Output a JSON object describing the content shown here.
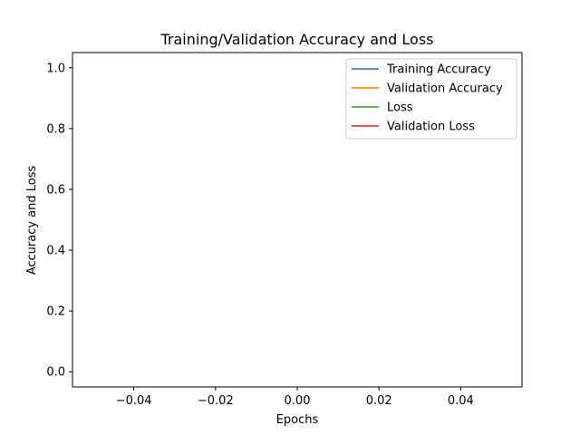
{
  "chart_data": {
    "type": "line",
    "title": "Training/Validation Accuracy and Loss",
    "xlabel": "Epochs",
    "ylabel": "Accuracy and Loss",
    "xlim": [
      -0.055,
      0.055
    ],
    "ylim": [
      -0.05,
      1.05
    ],
    "xticks": [
      -0.04,
      -0.02,
      0.0,
      0.02,
      0.04
    ],
    "xtick_labels": [
      "−0.04",
      "−0.02",
      "0.00",
      "0.02",
      "0.04"
    ],
    "yticks": [
      0.0,
      0.2,
      0.4,
      0.6,
      0.8,
      1.0
    ],
    "ytick_labels": [
      "0.0",
      "0.2",
      "0.4",
      "0.6",
      "0.8",
      "1.0"
    ],
    "grid": false,
    "legend_position": "top-right",
    "series": [
      {
        "name": "Training Accuracy",
        "color": "#1f77b4",
        "x": [],
        "y": []
      },
      {
        "name": "Validation Accuracy",
        "color": "#ff7f0e",
        "x": [],
        "y": []
      },
      {
        "name": "Loss",
        "color": "#2ca02c",
        "x": [],
        "y": []
      },
      {
        "name": "Validation Loss",
        "color": "#d62728",
        "x": [],
        "y": []
      }
    ]
  }
}
